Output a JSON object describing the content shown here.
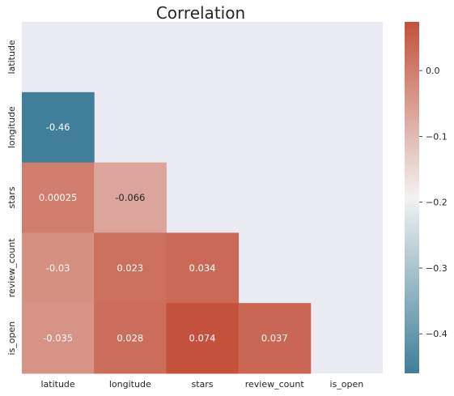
{
  "chart_data": {
    "type": "heatmap",
    "title": "Correlation",
    "variables": [
      "latitude",
      "longitude",
      "stars",
      "review_count",
      "is_open"
    ],
    "mask": "upper-triangle-including-diagonal",
    "cells": [
      {
        "row": "longitude",
        "col": "latitude",
        "value": -0.46,
        "label": "-0.46"
      },
      {
        "row": "stars",
        "col": "latitude",
        "value": 0.00025,
        "label": "0.00025"
      },
      {
        "row": "stars",
        "col": "longitude",
        "value": -0.066,
        "label": "-0.066"
      },
      {
        "row": "review_count",
        "col": "latitude",
        "value": -0.03,
        "label": "-0.03"
      },
      {
        "row": "review_count",
        "col": "longitude",
        "value": 0.023,
        "label": "0.023"
      },
      {
        "row": "review_count",
        "col": "stars",
        "value": 0.034,
        "label": "0.034"
      },
      {
        "row": "is_open",
        "col": "latitude",
        "value": -0.035,
        "label": "-0.035"
      },
      {
        "row": "is_open",
        "col": "longitude",
        "value": 0.028,
        "label": "0.028"
      },
      {
        "row": "is_open",
        "col": "stars",
        "value": 0.074,
        "label": "0.074"
      },
      {
        "row": "is_open",
        "col": "review_count",
        "value": 0.037,
        "label": "0.037"
      }
    ],
    "colorbar": {
      "vmin": -0.46,
      "vmax": 0.074,
      "ticks": [
        0.0,
        -0.1,
        -0.2,
        -0.3,
        -0.4
      ],
      "tick_labels": [
        "0.0",
        "−0.1",
        "−0.2",
        "−0.3",
        "−0.4"
      ],
      "colormap": {
        "low": "#3f7f99",
        "mid": "#f2f2f2",
        "high": "#c3513b",
        "center_value": -0.193
      }
    },
    "colors": {
      "masked_background": "#eaeaf2",
      "annotation_text_light": "#ffffff",
      "annotation_text_dark": "#262626"
    },
    "grid": false
  }
}
